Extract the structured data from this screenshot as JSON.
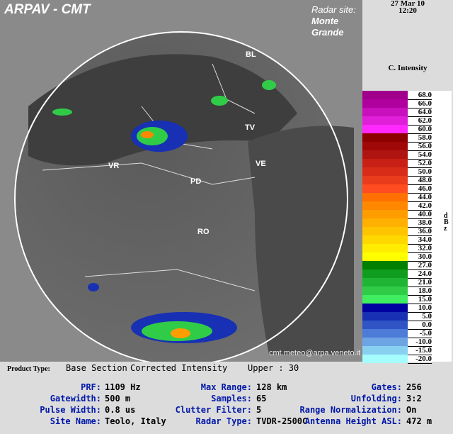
{
  "header": {
    "title": "ARPAV - CMT",
    "radar_site_label": "Radar site:",
    "radar_site_name_1": "Monte",
    "radar_site_name_2": "Grande",
    "email": "cmt.meteo@arpa.veneto.it"
  },
  "cities": [
    {
      "name": "BL"
    },
    {
      "name": "TV"
    },
    {
      "name": "VE"
    },
    {
      "name": "VR"
    },
    {
      "name": "PD"
    },
    {
      "name": "RO"
    }
  ],
  "side": {
    "date": "27 Mar 10",
    "time": "12:20",
    "product": "C. Intensity",
    "unit": "dBz"
  },
  "legend": [
    {
      "label": "68.0",
      "color": "#a0008c"
    },
    {
      "label": "66.0",
      "color": "#b0009e"
    },
    {
      "label": "64.0",
      "color": "#c810bc"
    },
    {
      "label": "62.0",
      "color": "#e020d8"
    },
    {
      "label": "60.0",
      "color": "#ff28ff"
    },
    {
      "label": "58.0",
      "color": "#8c0000"
    },
    {
      "label": "56.0",
      "color": "#a00808"
    },
    {
      "label": "54.0",
      "color": "#b01410"
    },
    {
      "label": "52.0",
      "color": "#c82014"
    },
    {
      "label": "50.0",
      "color": "#d82c18"
    },
    {
      "label": "48.0",
      "color": "#e83c1c"
    },
    {
      "label": "46.0",
      "color": "#ff4c20"
    },
    {
      "label": "44.0",
      "color": "#ff7000"
    },
    {
      "label": "42.0",
      "color": "#ff8800"
    },
    {
      "label": "40.0",
      "color": "#ff9c00"
    },
    {
      "label": "38.0",
      "color": "#ffb000"
    },
    {
      "label": "36.0",
      "color": "#ffc400"
    },
    {
      "label": "34.0",
      "color": "#ffd800"
    },
    {
      "label": "32.0",
      "color": "#ffec00"
    },
    {
      "label": "30.0",
      "color": "#ffff00"
    },
    {
      "label": "27.0",
      "color": "#008000"
    },
    {
      "label": "24.0",
      "color": "#109c1c"
    },
    {
      "label": "21.0",
      "color": "#20b434"
    },
    {
      "label": "18.0",
      "color": "#30cc48"
    },
    {
      "label": "15.0",
      "color": "#40ec60"
    },
    {
      "label": "10.0",
      "color": "#0000a0"
    },
    {
      "label": "5.0",
      "color": "#1830b4"
    },
    {
      "label": "0.0",
      "color": "#3054c4"
    },
    {
      "label": "-5.0",
      "color": "#4c7cd8"
    },
    {
      "label": "-10.0",
      "color": "#6ca4e4"
    },
    {
      "label": "-15.0",
      "color": "#88d0f0"
    },
    {
      "label": "-20.0",
      "color": "#a4fcfc"
    }
  ],
  "info": {
    "product_type_label": "Product Type:",
    "product_type_value": "Base Section",
    "product_name": "Corrected Intensity",
    "upper": "Upper : 30",
    "rows": [
      [
        {
          "k": "PRF:",
          "v": "1109 Hz"
        },
        {
          "k": "Max Range:",
          "v": "128 km"
        },
        {
          "k": "Gates:",
          "v": "256"
        }
      ],
      [
        {
          "k": "Gatewidth:",
          "v": "500 m"
        },
        {
          "k": "Samples:",
          "v": "65"
        },
        {
          "k": "Unfolding:",
          "v": "3:2"
        }
      ],
      [
        {
          "k": "Pulse Width:",
          "v": "0.8 us"
        },
        {
          "k": "Clutter Filter:",
          "v": "5"
        },
        {
          "k": "Range Normalization:",
          "v": "On"
        }
      ],
      [
        {
          "k": "Site Name:",
          "v": "Teolo, Italy"
        },
        {
          "k": "Radar Type:",
          "v": "TVDR-2500C"
        },
        {
          "k": "Antenna Height ASL:",
          "v": "472 m"
        }
      ]
    ]
  }
}
